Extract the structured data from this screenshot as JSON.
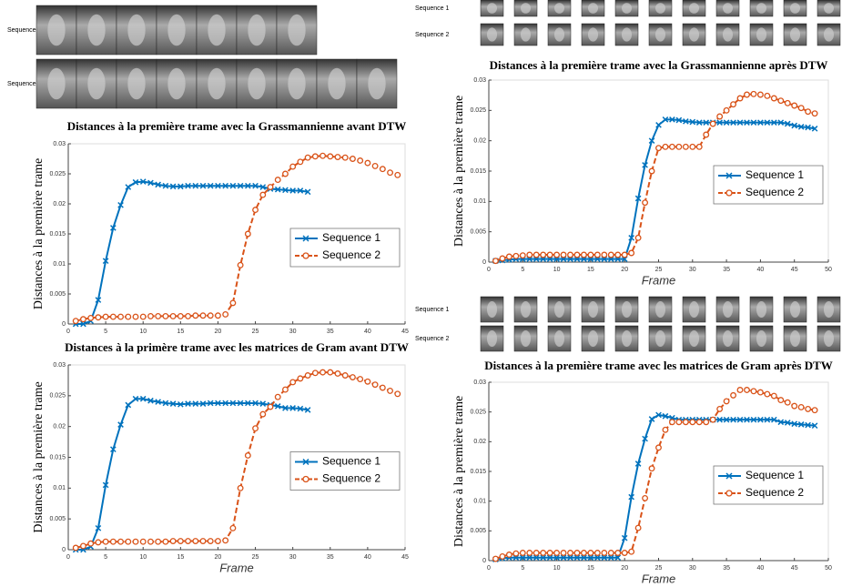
{
  "chart_data": [
    {
      "type": "line",
      "title": "Distances à la première trame avec la Grassmannienne avant DTW",
      "ylabel": "Distances à la première trame",
      "x": [
        1,
        2,
        3,
        4,
        5,
        6,
        7,
        8,
        9,
        10,
        11,
        12,
        13,
        14,
        15,
        16,
        17,
        18,
        19,
        20,
        21,
        22,
        23,
        24,
        25,
        26,
        27,
        28,
        29,
        30,
        31,
        32,
        33,
        34,
        35,
        36,
        37,
        38,
        39,
        40,
        41,
        42,
        43,
        44
      ],
      "series": [
        {
          "name": "Sequence 1",
          "color": "#0072bd",
          "marker": "x",
          "dashed": false,
          "values": [
            0,
            0,
            0.0005,
            0.004,
            0.0105,
            0.016,
            0.0198,
            0.0228,
            0.0236,
            0.0237,
            0.0235,
            0.0232,
            0.023,
            0.0229,
            0.0229,
            0.023,
            0.023,
            0.023,
            0.023,
            0.023,
            0.023,
            0.023,
            0.023,
            0.023,
            0.023,
            0.0228,
            0.0225,
            0.0224,
            0.0223,
            0.0222,
            0.0222,
            0.022,
            null,
            null,
            null,
            null,
            null,
            null,
            null,
            null,
            null,
            null,
            null,
            null
          ]
        },
        {
          "name": "Sequence 2",
          "color": "#d95319",
          "marker": "o",
          "dashed": true,
          "values": [
            0.0005,
            0.0008,
            0.001,
            0.0011,
            0.0012,
            0.0012,
            0.0012,
            0.0012,
            0.0012,
            0.0012,
            0.0013,
            0.0013,
            0.0013,
            0.0013,
            0.0013,
            0.0013,
            0.0014,
            0.0014,
            0.0014,
            0.0014,
            0.0016,
            0.0035,
            0.0098,
            0.015,
            0.019,
            0.0215,
            0.0228,
            0.024,
            0.025,
            0.0262,
            0.027,
            0.0277,
            0.0279,
            0.028,
            0.0279,
            0.0278,
            0.0277,
            0.0275,
            0.0272,
            0.0268,
            0.0263,
            0.0258,
            0.0252,
            0.0248
          ]
        }
      ],
      "xlim": [
        0,
        45
      ],
      "xticks": [
        0,
        5,
        10,
        15,
        20,
        25,
        30,
        35,
        40,
        45
      ],
      "ylim": [
        0,
        0.03
      ],
      "yticks": [
        0,
        0.005,
        0.01,
        0.015,
        0.02,
        0.025,
        0.03
      ],
      "legend": "center right"
    },
    {
      "type": "line",
      "title": "Distances à la primère trame avec les matrices de Gram avant DTW",
      "ylabel": "Distances à la première trame",
      "xlabel": "Frame",
      "x": [
        1,
        2,
        3,
        4,
        5,
        6,
        7,
        8,
        9,
        10,
        11,
        12,
        13,
        14,
        15,
        16,
        17,
        18,
        19,
        20,
        21,
        22,
        23,
        24,
        25,
        26,
        27,
        28,
        29,
        30,
        31,
        32,
        33,
        34,
        35,
        36,
        37,
        38,
        39,
        40,
        41,
        42,
        43,
        44
      ],
      "series": [
        {
          "name": "Sequence 1",
          "color": "#0072bd",
          "marker": "x",
          "dashed": false,
          "values": [
            0,
            0,
            0.0005,
            0.0035,
            0.0105,
            0.0163,
            0.0203,
            0.0235,
            0.0245,
            0.0245,
            0.0242,
            0.024,
            0.0238,
            0.0237,
            0.0236,
            0.0237,
            0.0237,
            0.0237,
            0.0238,
            0.0238,
            0.0238,
            0.0238,
            0.0238,
            0.0238,
            0.0238,
            0.0237,
            0.0235,
            0.0233,
            0.023,
            0.023,
            0.0229,
            0.0227,
            null,
            null,
            null,
            null,
            null,
            null,
            null,
            null,
            null,
            null,
            null,
            null
          ]
        },
        {
          "name": "Sequence 2",
          "color": "#d95319",
          "marker": "o",
          "dashed": true,
          "values": [
            0.0003,
            0.0006,
            0.001,
            0.0012,
            0.0013,
            0.0013,
            0.0013,
            0.0013,
            0.0013,
            0.0013,
            0.0013,
            0.0013,
            0.0013,
            0.0014,
            0.0014,
            0.0014,
            0.0014,
            0.0014,
            0.0014,
            0.0014,
            0.0015,
            0.0035,
            0.01,
            0.0153,
            0.0197,
            0.022,
            0.0232,
            0.0248,
            0.026,
            0.0272,
            0.0278,
            0.0283,
            0.0287,
            0.0288,
            0.0288,
            0.0286,
            0.0283,
            0.028,
            0.0277,
            0.0273,
            0.0268,
            0.0263,
            0.0258,
            0.0253
          ]
        }
      ],
      "xlim": [
        0,
        45
      ],
      "xticks": [
        0,
        5,
        10,
        15,
        20,
        25,
        30,
        35,
        40,
        45
      ],
      "ylim": [
        0,
        0.03
      ],
      "yticks": [
        0,
        0.005,
        0.01,
        0.015,
        0.02,
        0.025,
        0.03
      ],
      "legend": "center right"
    },
    {
      "type": "line",
      "title": "Distances à la première trame avec la Grassmannienne après DTW",
      "ylabel": "Distances à la première trame",
      "xlabel": "Frame",
      "x": [
        1,
        2,
        3,
        4,
        5,
        6,
        7,
        8,
        9,
        10,
        11,
        12,
        13,
        14,
        15,
        16,
        17,
        18,
        19,
        20,
        21,
        22,
        23,
        24,
        25,
        26,
        27,
        28,
        29,
        30,
        31,
        32,
        33,
        34,
        35,
        36,
        37,
        38,
        39,
        40,
        41,
        42,
        43,
        44,
        45,
        46,
        47,
        48
      ],
      "series": [
        {
          "name": "Sequence 1",
          "color": "#0072bd",
          "marker": "x",
          "dashed": false,
          "values": [
            0.0002,
            0.0003,
            0.0004,
            0.0005,
            0.0005,
            0.0005,
            0.0005,
            0.0005,
            0.0005,
            0.0005,
            0.0005,
            0.0005,
            0.0005,
            0.0005,
            0.0005,
            0.0005,
            0.0005,
            0.0005,
            0.0005,
            0.0005,
            0.004,
            0.0105,
            0.016,
            0.02,
            0.0226,
            0.0235,
            0.0235,
            0.0234,
            0.0232,
            0.0231,
            0.023,
            0.023,
            0.023,
            0.023,
            0.023,
            0.023,
            0.023,
            0.023,
            0.023,
            0.023,
            0.023,
            0.023,
            0.023,
            0.0228,
            0.0225,
            0.0223,
            0.0222,
            0.022
          ]
        },
        {
          "name": "Sequence 2",
          "color": "#d95319",
          "marker": "o",
          "dashed": true,
          "values": [
            0.0002,
            0.0006,
            0.0009,
            0.001,
            0.0011,
            0.0012,
            0.0012,
            0.0012,
            0.0012,
            0.0012,
            0.0012,
            0.0012,
            0.0012,
            0.0012,
            0.0012,
            0.0012,
            0.0012,
            0.0012,
            0.0012,
            0.0012,
            0.0015,
            0.004,
            0.0098,
            0.015,
            0.0188,
            0.019,
            0.019,
            0.019,
            0.019,
            0.019,
            0.019,
            0.021,
            0.0228,
            0.024,
            0.025,
            0.026,
            0.027,
            0.0276,
            0.0277,
            0.0276,
            0.0274,
            0.027,
            0.0266,
            0.0262,
            0.0258,
            0.0254,
            0.0248,
            0.0245
          ]
        }
      ],
      "xlim": [
        0,
        50
      ],
      "xticks": [
        0,
        5,
        10,
        15,
        20,
        25,
        30,
        35,
        40,
        45,
        50
      ],
      "ylim": [
        0,
        0.03
      ],
      "yticks": [
        0,
        0.005,
        0.01,
        0.015,
        0.02,
        0.025,
        0.03
      ],
      "legend": "center right"
    },
    {
      "type": "line",
      "title": "Distances à la première trame avec les matrices de Gram après DTW",
      "ylabel": "Distances à la première trame",
      "xlabel": "Frame",
      "x": [
        1,
        2,
        3,
        4,
        5,
        6,
        7,
        8,
        9,
        10,
        11,
        12,
        13,
        14,
        15,
        16,
        17,
        18,
        19,
        20,
        21,
        22,
        23,
        24,
        25,
        26,
        27,
        28,
        29,
        30,
        31,
        32,
        33,
        34,
        35,
        36,
        37,
        38,
        39,
        40,
        41,
        42,
        43,
        44,
        45,
        46,
        47,
        48
      ],
      "series": [
        {
          "name": "Sequence 1",
          "color": "#0072bd",
          "marker": "x",
          "dashed": false,
          "values": [
            0.0002,
            0.0004,
            0.0005,
            0.0005,
            0.0005,
            0.0005,
            0.0005,
            0.0005,
            0.0005,
            0.0005,
            0.0005,
            0.0005,
            0.0005,
            0.0005,
            0.0005,
            0.0005,
            0.0005,
            0.0005,
            0.0005,
            0.0038,
            0.0107,
            0.0163,
            0.0205,
            0.0238,
            0.0245,
            0.0243,
            0.024,
            0.0237,
            0.0237,
            0.0237,
            0.0237,
            0.0237,
            0.0237,
            0.0237,
            0.0237,
            0.0237,
            0.0237,
            0.0237,
            0.0237,
            0.0237,
            0.0237,
            0.0237,
            0.0233,
            0.0232,
            0.023,
            0.0229,
            0.0228,
            0.0227
          ]
        },
        {
          "name": "Sequence 2",
          "color": "#d95319",
          "marker": "o",
          "dashed": true,
          "values": [
            0.0003,
            0.0007,
            0.001,
            0.0012,
            0.0013,
            0.0013,
            0.0013,
            0.0013,
            0.0013,
            0.0013,
            0.0013,
            0.0013,
            0.0013,
            0.0013,
            0.0013,
            0.0013,
            0.0013,
            0.0013,
            0.0013,
            0.0013,
            0.0015,
            0.0055,
            0.0105,
            0.0155,
            0.019,
            0.022,
            0.0233,
            0.0233,
            0.0233,
            0.0233,
            0.0233,
            0.0233,
            0.0237,
            0.0255,
            0.0268,
            0.0278,
            0.0287,
            0.0287,
            0.0285,
            0.0283,
            0.028,
            0.0277,
            0.027,
            0.0266,
            0.026,
            0.0258,
            0.0255,
            0.0253
          ]
        }
      ],
      "xlim": [
        0,
        50
      ],
      "xticks": [
        0,
        5,
        10,
        15,
        20,
        25,
        30,
        35,
        40,
        45,
        50
      ],
      "ylim": [
        0,
        0.03
      ],
      "yticks": [
        0,
        0.005,
        0.01,
        0.015,
        0.02,
        0.025,
        0.03
      ],
      "legend": "center right"
    }
  ],
  "image_strips": [
    {
      "labels": [
        "Sequence 1",
        "Sequence 2"
      ]
    },
    {
      "labels": [
        "Sequence 1",
        "Sequence 2"
      ]
    },
    {
      "labels": [
        "Sequence 1",
        "Sequence 2"
      ]
    }
  ]
}
